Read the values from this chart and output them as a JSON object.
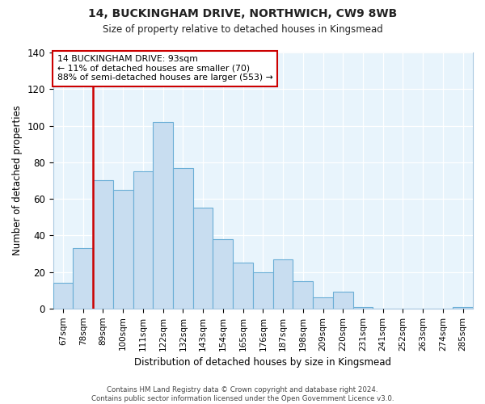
{
  "title": "14, BUCKINGHAM DRIVE, NORTHWICH, CW9 8WB",
  "subtitle": "Size of property relative to detached houses in Kingsmead",
  "xlabel": "Distribution of detached houses by size in Kingsmead",
  "ylabel": "Number of detached properties",
  "footer_line1": "Contains HM Land Registry data © Crown copyright and database right 2024.",
  "footer_line2": "Contains public sector information licensed under the Open Government Licence v3.0.",
  "bar_labels": [
    "67sqm",
    "78sqm",
    "89sqm",
    "100sqm",
    "111sqm",
    "122sqm",
    "132sqm",
    "143sqm",
    "154sqm",
    "165sqm",
    "176sqm",
    "187sqm",
    "198sqm",
    "209sqm",
    "220sqm",
    "231sqm",
    "241sqm",
    "252sqm",
    "263sqm",
    "274sqm",
    "285sqm"
  ],
  "bar_heights": [
    14,
    33,
    70,
    65,
    75,
    102,
    77,
    55,
    38,
    25,
    20,
    27,
    15,
    6,
    9,
    1,
    0,
    0,
    0,
    0,
    1
  ],
  "bar_color": "#c8ddf0",
  "bar_edge_color": "#6aaed6",
  "vline_color": "#cc0000",
  "annotation_title": "14 BUCKINGHAM DRIVE: 93sqm",
  "annotation_line1": "← 11% of detached houses are smaller (70)",
  "annotation_line2": "88% of semi-detached houses are larger (553) →",
  "annotation_box_edge": "#cc0000",
  "ylim": [
    0,
    140
  ],
  "yticks": [
    0,
    20,
    40,
    60,
    80,
    100,
    120,
    140
  ],
  "plot_bg_color": "#e8f4fc",
  "background_color": "#ffffff",
  "grid_color": "#ffffff"
}
